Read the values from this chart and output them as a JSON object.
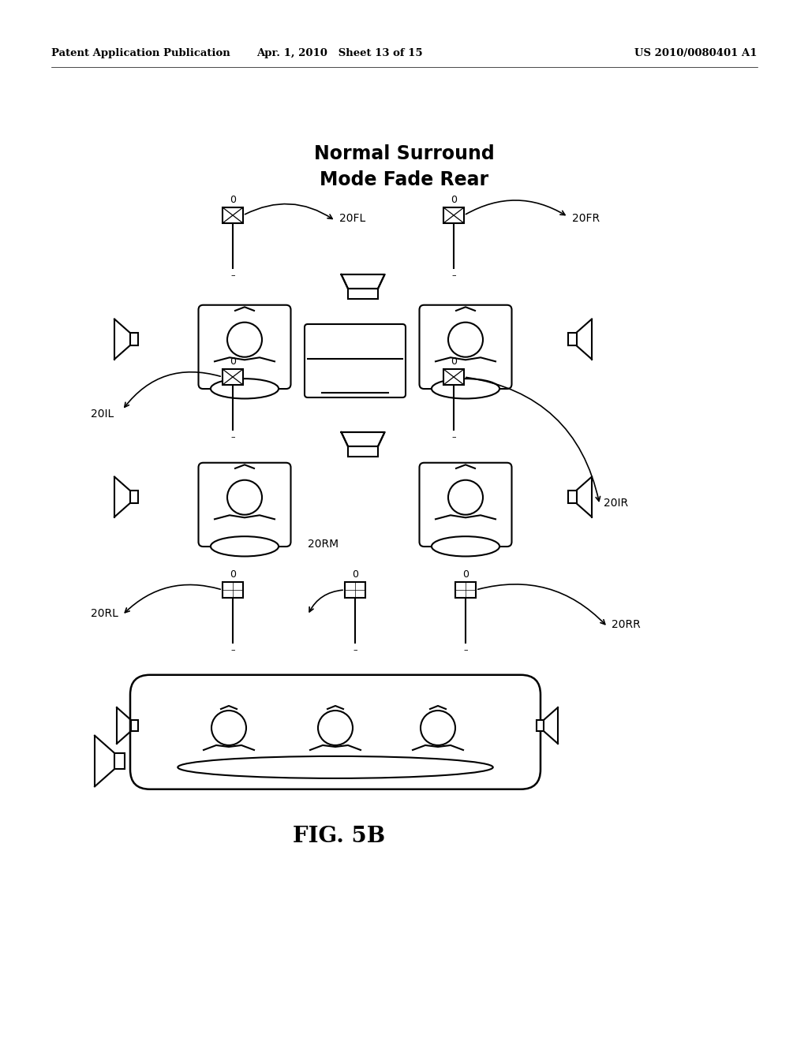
{
  "bg_color": "#ffffff",
  "title_line1": "Normal Surround",
  "title_line2": "Mode Fade Rear",
  "fig_label": "FIG. 5B",
  "header_left": "Patent Application Publication",
  "header_mid": "Apr. 1, 2010   Sheet 13 of 15",
  "header_right": "US 2010/0080401 A1"
}
